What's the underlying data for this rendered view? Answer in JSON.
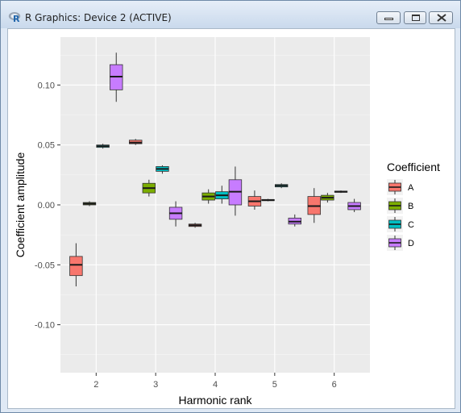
{
  "window": {
    "title": "R Graphics: Device 2 (ACTIVE)",
    "icon": "r-logo-icon",
    "controls": [
      "minimize-icon",
      "maximize-icon",
      "close-icon"
    ]
  },
  "chart_data": {
    "type": "boxplot",
    "title": "",
    "xlabel": "Harmonic rank",
    "ylabel": "Coefficient amplitude",
    "categories": [
      2,
      3,
      4,
      5,
      6
    ],
    "ylim": [
      -0.14,
      0.14
    ],
    "yticks": [
      -0.1,
      -0.05,
      0.0,
      0.05,
      0.1
    ],
    "ytick_labels": [
      "-0.10",
      "-0.05",
      "0.00",
      "0.05",
      "0.10"
    ],
    "xtick_labels": [
      "2",
      "3",
      "4",
      "5",
      "6"
    ],
    "grid": true,
    "legend": {
      "title": "Coefficient",
      "placement": "right"
    },
    "series": [
      {
        "name": "A",
        "color": "#F8766D",
        "boxes": [
          {
            "x": 2,
            "min": -0.068,
            "q1": -0.059,
            "median": -0.05,
            "q3": -0.043,
            "max": -0.032
          },
          {
            "x": 3,
            "min": 0.05,
            "q1": 0.051,
            "median": 0.052,
            "q3": 0.054,
            "max": 0.055
          },
          {
            "x": 4,
            "min": -0.019,
            "q1": -0.018,
            "median": -0.017,
            "q3": -0.016,
            "max": -0.015
          },
          {
            "x": 5,
            "min": -0.004,
            "q1": -0.001,
            "median": 0.003,
            "q3": 0.007,
            "max": 0.012
          },
          {
            "x": 6,
            "min": -0.015,
            "q1": -0.008,
            "median": -0.001,
            "q3": 0.007,
            "max": 0.014
          }
        ]
      },
      {
        "name": "B",
        "color": "#7CAE00",
        "boxes": [
          {
            "x": 2,
            "min": -0.001,
            "q1": 0.0,
            "median": 0.001,
            "q3": 0.002,
            "max": 0.003
          },
          {
            "x": 3,
            "min": 0.007,
            "q1": 0.01,
            "median": 0.014,
            "q3": 0.018,
            "max": 0.021
          },
          {
            "x": 4,
            "min": 0.001,
            "q1": 0.004,
            "median": 0.007,
            "q3": 0.01,
            "max": 0.013
          },
          {
            "x": 5,
            "min": 0.003,
            "q1": 0.0035,
            "median": 0.004,
            "q3": 0.0045,
            "max": 0.005
          },
          {
            "x": 6,
            "min": 0.002,
            "q1": 0.004,
            "median": 0.006,
            "q3": 0.008,
            "max": 0.01
          }
        ]
      },
      {
        "name": "C",
        "color": "#00BFC4",
        "boxes": [
          {
            "x": 2,
            "min": 0.047,
            "q1": 0.048,
            "median": 0.049,
            "q3": 0.05,
            "max": 0.051
          },
          {
            "x": 3,
            "min": 0.026,
            "q1": 0.028,
            "median": 0.03,
            "q3": 0.032,
            "max": 0.033
          },
          {
            "x": 4,
            "min": 0.001,
            "q1": 0.005,
            "median": 0.008,
            "q3": 0.011,
            "max": 0.016
          },
          {
            "x": 5,
            "min": 0.014,
            "q1": 0.015,
            "median": 0.016,
            "q3": 0.017,
            "max": 0.018
          },
          {
            "x": 6,
            "min": 0.01,
            "q1": 0.0105,
            "median": 0.011,
            "q3": 0.0115,
            "max": 0.012
          }
        ]
      },
      {
        "name": "D",
        "color": "#C77CFF",
        "boxes": [
          {
            "x": 2,
            "min": 0.086,
            "q1": 0.096,
            "median": 0.107,
            "q3": 0.117,
            "max": 0.127
          },
          {
            "x": 3,
            "min": -0.018,
            "q1": -0.012,
            "median": -0.007,
            "q3": -0.002,
            "max": 0.003
          },
          {
            "x": 4,
            "min": -0.009,
            "q1": 0.0,
            "median": 0.011,
            "q3": 0.021,
            "max": 0.032
          },
          {
            "x": 5,
            "min": -0.018,
            "q1": -0.016,
            "median": -0.014,
            "q3": -0.011,
            "max": -0.008
          },
          {
            "x": 6,
            "min": -0.006,
            "q1": -0.004,
            "median": -0.001,
            "q3": 0.002,
            "max": 0.005
          }
        ]
      }
    ]
  }
}
